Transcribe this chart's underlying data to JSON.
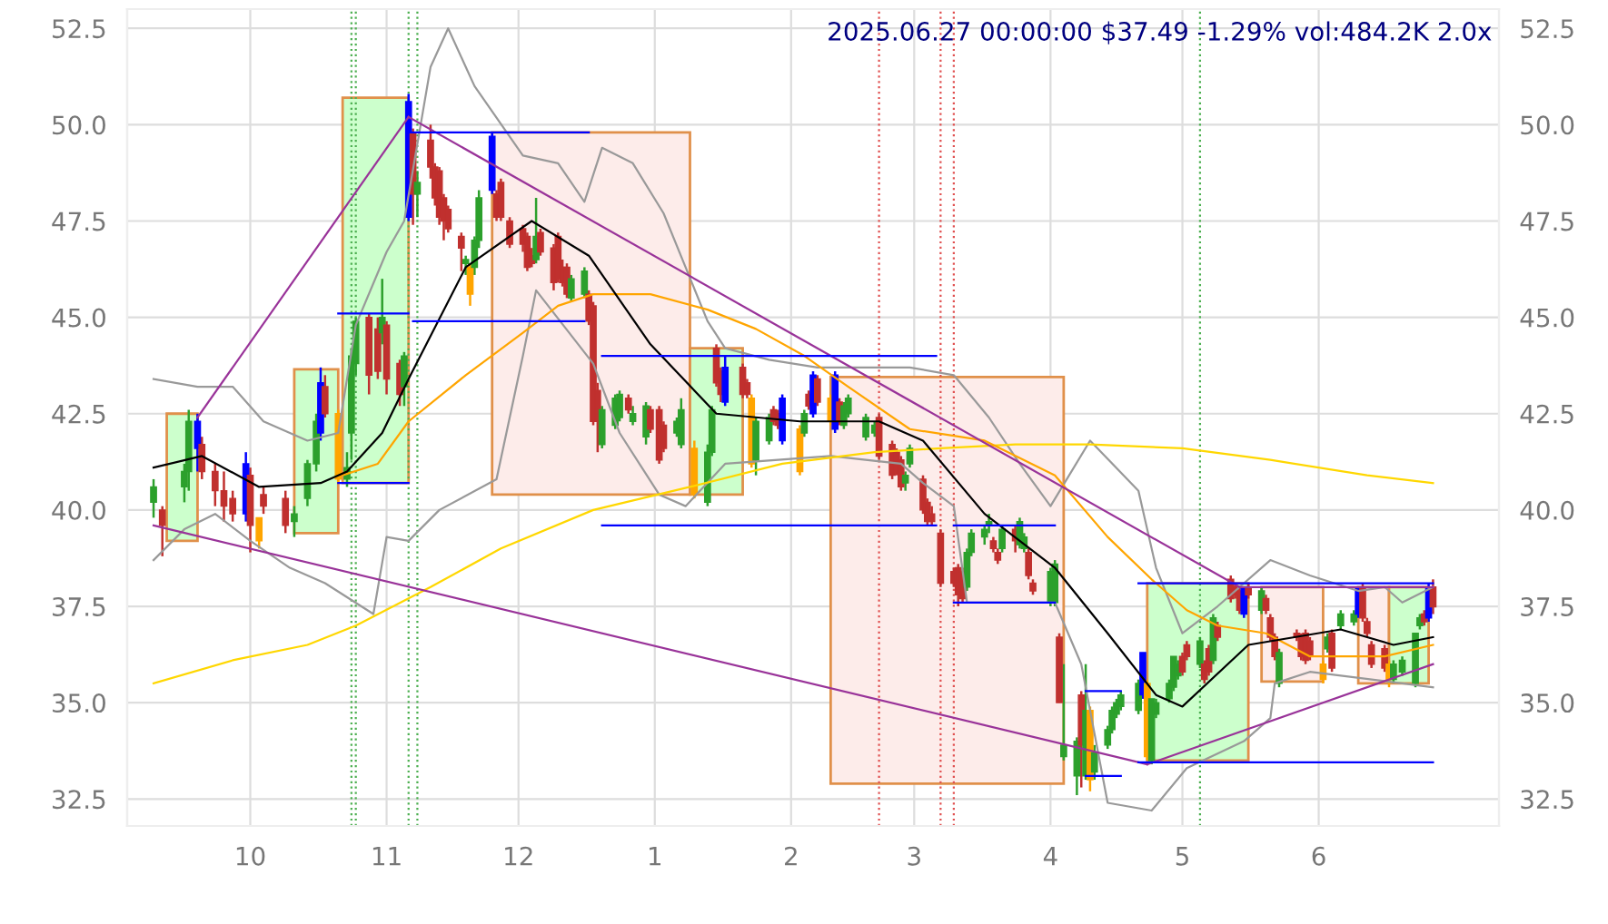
{
  "chart_data": {
    "type": "candlestick",
    "title": "2025.06.27 00:00:00 $37.49 -1.29% vol:484.2K 2.0x",
    "x": [
      "2024-09-09",
      "2024-09-11",
      "2024-09-16",
      "2024-09-17",
      "2024-09-19",
      "2024-09-20",
      "2024-09-23",
      "2024-09-25",
      "2024-09-27",
      "2024-09-30",
      "2024-10-01",
      "2024-10-03",
      "2024-10-04",
      "2024-10-09",
      "2024-10-11",
      "2024-10-14",
      "2024-10-16",
      "2024-10-17",
      "2024-10-18",
      "2024-10-21",
      "2024-10-23",
      "2024-10-24",
      "2024-10-25",
      "2024-10-28",
      "2024-10-30",
      "2024-10-31",
      "2024-11-01",
      "2024-11-04",
      "2024-11-05",
      "2024-11-06",
      "2024-11-07",
      "2024-11-08",
      "2024-11-11",
      "2024-11-12",
      "2024-11-13",
      "2024-11-14",
      "2024-11-15",
      "2024-11-18",
      "2024-11-19",
      "2024-11-20",
      "2024-11-21",
      "2024-11-22",
      "2024-11-25",
      "2024-11-26",
      "2024-11-27",
      "2024-11-29",
      "2024-12-02",
      "2024-12-03",
      "2024-12-04",
      "2024-12-05",
      "2024-12-06",
      "2024-12-09",
      "2024-12-10",
      "2024-12-11",
      "2024-12-12",
      "2024-12-13",
      "2024-12-16",
      "2024-12-17",
      "2024-12-18",
      "2024-12-19",
      "2024-12-20",
      "2024-12-23",
      "2024-12-24",
      "2024-12-26",
      "2024-12-27",
      "2024-12-30",
      "2024-12-31",
      "2025-01-02",
      "2025-01-03",
      "2025-01-06",
      "2025-01-07",
      "2025-01-10",
      "2025-01-13",
      "2025-01-14",
      "2025-01-15",
      "2025-01-16",
      "2025-01-17",
      "2025-01-21",
      "2025-01-22",
      "2025-01-23",
      "2025-01-24",
      "2025-01-27",
      "2025-01-28",
      "2025-01-29",
      "2025-01-30",
      "2025-02-03",
      "2025-02-04",
      "2025-02-05",
      "2025-02-06",
      "2025-02-07",
      "2025-02-10",
      "2025-02-11",
      "2025-02-12",
      "2025-02-13",
      "2025-02-14",
      "2025-02-18",
      "2025-02-20",
      "2025-02-21",
      "2025-02-24",
      "2025-02-25",
      "2025-02-26",
      "2025-02-27",
      "2025-02-28",
      "2025-03-03",
      "2025-03-04",
      "2025-03-05",
      "2025-03-07",
      "2025-03-10",
      "2025-03-11",
      "2025-03-12",
      "2025-03-13",
      "2025-03-14",
      "2025-03-17",
      "2025-03-18",
      "2025-03-19",
      "2025-03-20",
      "2025-03-21",
      "2025-03-24",
      "2025-03-25",
      "2025-03-26",
      "2025-03-27",
      "2025-03-28",
      "2025-04-01",
      "2025-04-02",
      "2025-04-03",
      "2025-04-04",
      "2025-04-07",
      "2025-04-08",
      "2025-04-09",
      "2025-04-10",
      "2025-04-11",
      "2025-04-14",
      "2025-04-15",
      "2025-04-16",
      "2025-04-17",
      "2025-04-21",
      "2025-04-22",
      "2025-04-23",
      "2025-04-24",
      "2025-04-25",
      "2025-04-28",
      "2025-04-29",
      "2025-04-30",
      "2025-05-01",
      "2025-05-02",
      "2025-05-05",
      "2025-05-06",
      "2025-05-07",
      "2025-05-08",
      "2025-05-09",
      "2025-05-12",
      "2025-05-13",
      "2025-05-14",
      "2025-05-15",
      "2025-05-16",
      "2025-05-19",
      "2025-05-20",
      "2025-05-21",
      "2025-05-22",
      "2025-05-23",
      "2025-05-27",
      "2025-05-28",
      "2025-05-29",
      "2025-05-30",
      "2025-06-02",
      "2025-06-03",
      "2025-06-04",
      "2025-06-06",
      "2025-06-09",
      "2025-06-10",
      "2025-06-11",
      "2025-06-12",
      "2025-06-13",
      "2025-06-16",
      "2025-06-17",
      "2025-06-18",
      "2025-06-20",
      "2025-06-23",
      "2025-06-24",
      "2025-06-25",
      "2025-06-26",
      "2025-06-27"
    ],
    "ohlc": [
      [
        40.2,
        40.8,
        39.8,
        40.6
      ],
      [
        40.0,
        40.1,
        38.8,
        39.6
      ],
      [
        40.6,
        41.2,
        40.2,
        41.0
      ],
      [
        41.0,
        42.6,
        40.5,
        42.3
      ],
      [
        42.3,
        42.5,
        41.0,
        41.6
      ],
      [
        41.7,
        41.9,
        40.8,
        41.0
      ],
      [
        41.0,
        41.2,
        40.1,
        40.5
      ],
      [
        40.5,
        41.0,
        39.7,
        40.1
      ],
      [
        40.3,
        40.5,
        39.7,
        39.9
      ],
      [
        39.9,
        41.5,
        39.7,
        41.2
      ],
      [
        40.9,
        41.1,
        38.9,
        39.6
      ],
      [
        39.8,
        39.8,
        39.0,
        39.2
      ],
      [
        40.4,
        40.6,
        39.9,
        40.1
      ],
      [
        40.3,
        40.5,
        39.4,
        39.6
      ],
      [
        39.7,
        40.1,
        39.3,
        39.9
      ],
      [
        40.3,
        41.3,
        40.1,
        41.2
      ],
      [
        41.2,
        42.5,
        41.0,
        42.3
      ],
      [
        42.0,
        43.7,
        41.8,
        43.3
      ],
      [
        43.2,
        43.5,
        42.4,
        42.5
      ],
      [
        42.5,
        42.6,
        40.7,
        40.8
      ],
      [
        40.8,
        41.5,
        40.6,
        41.1
      ],
      [
        42.0,
        44.2,
        41.3,
        44.0
      ],
      [
        43.8,
        45.0,
        43.5,
        44.9
      ],
      [
        45.0,
        45.1,
        43.0,
        43.5
      ],
      [
        44.7,
        45.0,
        43.4,
        43.6
      ],
      [
        44.6,
        46.0,
        44.3,
        45.0
      ],
      [
        44.8,
        44.9,
        43.0,
        43.4
      ],
      [
        43.8,
        43.9,
        42.7,
        43.0
      ],
      [
        43.2,
        44.1,
        42.7,
        44.0
      ],
      [
        47.6,
        50.8,
        47.5,
        50.6
      ],
      [
        49.8,
        49.9,
        47.4,
        48.2
      ],
      [
        48.2,
        48.8,
        47.6,
        48.5
      ],
      [
        49.6,
        50.0,
        48.6,
        48.9
      ],
      [
        48.9,
        49.0,
        47.9,
        48.1
      ],
      [
        48.8,
        48.9,
        47.4,
        47.6
      ],
      [
        48.1,
        48.2,
        47.0,
        47.5
      ],
      [
        47.8,
        47.9,
        47.2,
        47.3
      ],
      [
        47.1,
        47.2,
        46.2,
        46.8
      ],
      [
        46.4,
        46.6,
        46.1,
        46.5
      ],
      [
        46.3,
        46.4,
        45.3,
        45.6
      ],
      [
        46.3,
        47.1,
        46.1,
        47.0
      ],
      [
        47.0,
        48.3,
        46.8,
        48.1
      ],
      [
        49.7,
        49.8,
        48.2,
        48.3
      ],
      [
        48.2,
        48.3,
        47.5,
        47.6
      ],
      [
        48.5,
        48.6,
        47.5,
        47.6
      ],
      [
        47.5,
        47.6,
        46.8,
        46.9
      ],
      [
        47.3,
        47.4,
        46.7,
        46.9
      ],
      [
        47.1,
        47.2,
        46.2,
        46.3
      ],
      [
        46.6,
        46.8,
        46.3,
        46.4
      ],
      [
        46.5,
        48.1,
        46.4,
        47.1
      ],
      [
        47.2,
        47.3,
        46.6,
        46.7
      ],
      [
        46.8,
        46.9,
        45.7,
        45.9
      ],
      [
        47.1,
        47.2,
        45.9,
        46.0
      ],
      [
        46.3,
        46.5,
        45.8,
        45.9
      ],
      [
        46.3,
        46.4,
        45.5,
        45.6
      ],
      [
        45.5,
        46.1,
        45.4,
        46.0
      ],
      [
        45.6,
        46.3,
        45.5,
        46.2
      ],
      [
        45.6,
        45.7,
        44.8,
        44.9
      ],
      [
        45.3,
        45.4,
        42.2,
        42.3
      ],
      [
        43.1,
        43.3,
        41.5,
        42.3
      ],
      [
        41.7,
        42.7,
        41.6,
        42.6
      ],
      [
        42.2,
        43.0,
        42.1,
        42.9
      ],
      [
        42.4,
        43.1,
        42.3,
        43.0
      ],
      [
        42.9,
        43.0,
        42.5,
        42.6
      ],
      [
        42.3,
        42.7,
        42.2,
        42.5
      ],
      [
        41.9,
        42.8,
        41.7,
        42.7
      ],
      [
        42.6,
        42.7,
        42.0,
        42.1
      ],
      [
        42.6,
        42.7,
        41.2,
        41.3
      ],
      [
        42.2,
        42.3,
        41.5,
        41.6
      ],
      [
        42.0,
        42.4,
        41.9,
        42.3
      ],
      [
        41.7,
        42.9,
        41.6,
        42.6
      ],
      [
        41.6,
        41.8,
        40.3,
        40.4
      ],
      [
        40.2,
        41.7,
        40.1,
        41.5
      ],
      [
        41.5,
        42.7,
        41.4,
        42.6
      ],
      [
        44.2,
        44.3,
        43.2,
        43.3
      ],
      [
        43.6,
        43.7,
        42.8,
        43.0
      ],
      [
        43.7,
        44.0,
        42.7,
        42.8
      ],
      [
        43.7,
        43.8,
        42.9,
        43.0
      ],
      [
        43.3,
        43.4,
        42.9,
        43.0
      ],
      [
        42.9,
        43.0,
        41.1,
        41.2
      ],
      [
        41.3,
        42.4,
        40.9,
        42.3
      ],
      [
        41.8,
        42.5,
        41.7,
        42.4
      ],
      [
        42.6,
        42.7,
        42.2,
        42.3
      ],
      [
        42.5,
        42.6,
        42.1,
        42.2
      ],
      [
        41.8,
        43.0,
        41.7,
        42.9
      ],
      [
        42.1,
        42.2,
        40.9,
        41.0
      ],
      [
        42.0,
        42.6,
        41.9,
        42.5
      ],
      [
        43.0,
        43.1,
        42.6,
        42.7
      ],
      [
        42.5,
        43.6,
        42.4,
        43.5
      ],
      [
        43.4,
        43.5,
        42.7,
        42.8
      ],
      [
        42.9,
        43.0,
        42.2,
        42.3
      ],
      [
        43.5,
        43.6,
        42.0,
        42.1
      ],
      [
        42.8,
        42.9,
        42.2,
        42.3
      ],
      [
        42.2,
        42.8,
        42.1,
        42.7
      ],
      [
        42.5,
        43.0,
        42.4,
        42.9
      ],
      [
        41.9,
        42.5,
        41.8,
        42.4
      ],
      [
        42.0,
        42.3,
        41.9,
        42.2
      ],
      [
        42.4,
        42.5,
        41.3,
        41.4
      ],
      [
        41.7,
        41.8,
        40.8,
        40.9
      ],
      [
        41.5,
        41.6,
        40.9,
        41.0
      ],
      [
        41.3,
        41.4,
        40.5,
        40.6
      ],
      [
        40.7,
        41.0,
        40.5,
        40.9
      ],
      [
        41.2,
        41.7,
        41.1,
        41.6
      ],
      [
        40.8,
        40.9,
        39.9,
        40.0
      ],
      [
        40.2,
        40.3,
        39.6,
        39.7
      ],
      [
        39.9,
        40.1,
        39.6,
        39.7
      ],
      [
        39.4,
        39.5,
        38.0,
        38.1
      ],
      [
        38.4,
        38.5,
        38.0,
        38.1
      ],
      [
        38.5,
        38.6,
        37.5,
        37.8
      ],
      [
        38.4,
        38.5,
        37.6,
        37.7
      ],
      [
        38.0,
        39.0,
        37.9,
        38.9
      ],
      [
        38.9,
        39.5,
        38.8,
        39.4
      ],
      [
        39.3,
        39.6,
        39.1,
        39.5
      ],
      [
        39.6,
        39.9,
        39.4,
        39.7
      ],
      [
        39.2,
        39.3,
        38.9,
        39.0
      ],
      [
        38.9,
        39.0,
        38.6,
        38.7
      ],
      [
        39.0,
        39.6,
        38.9,
        39.5
      ],
      [
        39.5,
        39.6,
        38.9,
        39.2
      ],
      [
        39.1,
        39.8,
        39.0,
        39.7
      ],
      [
        39.0,
        39.4,
        38.9,
        39.3
      ],
      [
        38.9,
        39.0,
        38.2,
        38.3
      ],
      [
        38.1,
        38.2,
        37.8,
        37.9
      ],
      [
        37.6,
        38.5,
        37.5,
        38.4
      ],
      [
        37.6,
        38.7,
        37.5,
        38.6
      ],
      [
        36.7,
        36.8,
        35.0,
        35.0
      ],
      [
        33.6,
        36.0,
        33.5,
        33.9
      ],
      [
        33.1,
        34.1,
        32.6,
        34.0
      ],
      [
        35.2,
        35.3,
        32.8,
        33.9
      ],
      [
        33.1,
        36.0,
        33.0,
        34.8
      ],
      [
        34.8,
        34.9,
        32.7,
        33.0
      ],
      [
        33.2,
        33.9,
        33.0,
        33.7
      ],
      [
        33.9,
        34.4,
        33.8,
        34.3
      ],
      [
        34.3,
        34.9,
        34.2,
        34.8
      ],
      [
        34.7,
        35.1,
        34.6,
        35.0
      ],
      [
        34.9,
        35.3,
        34.8,
        35.2
      ],
      [
        34.8,
        35.6,
        34.7,
        35.5
      ],
      [
        35.2,
        36.3,
        35.1,
        36.3
      ],
      [
        35.5,
        35.6,
        33.5,
        33.6
      ],
      [
        33.5,
        35.1,
        33.4,
        35.1
      ],
      [
        34.7,
        35.1,
        34.6,
        35.0
      ],
      [
        35.1,
        35.6,
        35.0,
        35.5
      ],
      [
        35.4,
        36.2,
        35.3,
        36.2
      ],
      [
        35.7,
        36.1,
        35.6,
        36.0
      ],
      [
        36.2,
        36.3,
        35.7,
        35.8
      ],
      [
        36.5,
        36.6,
        36.1,
        36.2
      ],
      [
        36.0,
        36.7,
        35.9,
        36.6
      ],
      [
        36.0,
        36.1,
        35.5,
        35.6
      ],
      [
        36.4,
        36.5,
        35.7,
        35.8
      ],
      [
        36.1,
        37.3,
        36.0,
        37.2
      ],
      [
        37.0,
        37.1,
        36.6,
        36.7
      ],
      [
        38.2,
        38.3,
        37.6,
        37.7
      ],
      [
        38.0,
        38.1,
        37.7,
        37.8
      ],
      [
        37.9,
        38.0,
        37.3,
        37.4
      ],
      [
        37.3,
        38.0,
        37.2,
        38.0
      ],
      [
        38.0,
        38.1,
        37.7,
        37.8
      ],
      [
        37.4,
        38.0,
        37.3,
        37.9
      ],
      [
        37.7,
        37.8,
        37.3,
        37.4
      ],
      [
        37.2,
        37.3,
        36.6,
        36.7
      ],
      [
        36.7,
        36.8,
        36.1,
        36.2
      ],
      [
        35.5,
        36.4,
        35.4,
        36.3
      ],
      [
        36.8,
        36.9,
        36.6,
        36.7
      ],
      [
        36.7,
        36.8,
        36.1,
        36.2
      ],
      [
        36.8,
        36.9,
        36.0,
        36.1
      ],
      [
        36.6,
        36.7,
        36.1,
        36.2
      ],
      [
        36.0,
        36.1,
        35.5,
        35.6
      ],
      [
        36.4,
        36.8,
        36.3,
        36.7
      ],
      [
        36.8,
        36.9,
        35.8,
        35.9
      ],
      [
        37.0,
        37.4,
        36.9,
        37.3
      ],
      [
        37.1,
        37.4,
        37.0,
        37.3
      ],
      [
        37.3,
        38.0,
        37.2,
        38.0
      ],
      [
        38.0,
        38.1,
        37.1,
        37.2
      ],
      [
        37.1,
        37.2,
        36.7,
        36.8
      ],
      [
        36.5,
        36.6,
        35.9,
        36.0
      ],
      [
        36.4,
        36.5,
        35.8,
        35.9
      ],
      [
        36.0,
        36.1,
        35.4,
        35.6
      ],
      [
        35.6,
        36.1,
        35.5,
        36.0
      ],
      [
        35.8,
        36.2,
        35.7,
        36.1
      ],
      [
        35.5,
        36.8,
        35.4,
        36.8
      ],
      [
        37.0,
        37.3,
        36.9,
        37.2
      ],
      [
        37.3,
        37.4,
        37.0,
        37.1
      ],
      [
        37.2,
        38.1,
        37.1,
        38.0
      ],
      [
        38.0,
        38.2,
        37.3,
        37.49
      ]
    ],
    "colors": [
      "#2ca02c",
      "#c0302e",
      "#2ca02c",
      "#2ca02c",
      "#0000ff",
      "#c0302e",
      "#c0302e",
      "#c0302e",
      "#c0302e",
      "#0000ff",
      "#c0302e",
      "#ffa500",
      "#c0302e",
      "#c0302e",
      "#2ca02c",
      "#2ca02c",
      "#2ca02c",
      "#0000ff",
      "#c0302e",
      "#ffa500",
      "#2ca02c",
      "#2ca02c",
      "#2ca02c",
      "#c0302e",
      "#c0302e",
      "#2ca02c",
      "#c0302e",
      "#c0302e",
      "#2ca02c",
      "#0000ff",
      "#c0302e",
      "#2ca02c",
      "#c0302e",
      "#c0302e",
      "#c0302e",
      "#c0302e",
      "#c0302e",
      "#c0302e",
      "#2ca02c",
      "#ffa500",
      "#2ca02c",
      "#2ca02c",
      "#0000ff",
      "#c0302e",
      "#c0302e",
      "#c0302e",
      "#c0302e",
      "#c0302e",
      "#c0302e",
      "#2ca02c",
      "#c0302e",
      "#c0302e",
      "#c0302e",
      "#c0302e",
      "#c0302e",
      "#2ca02c",
      "#2ca02c",
      "#c0302e",
      "#c0302e",
      "#c0302e",
      "#2ca02c",
      "#2ca02c",
      "#2ca02c",
      "#c0302e",
      "#2ca02c",
      "#2ca02c",
      "#c0302e",
      "#c0302e",
      "#c0302e",
      "#2ca02c",
      "#2ca02c",
      "#ffa500",
      "#2ca02c",
      "#2ca02c",
      "#c0302e",
      "#c0302e",
      "#0000ff",
      "#c0302e",
      "#c0302e",
      "#ffa500",
      "#2ca02c",
      "#2ca02c",
      "#c0302e",
      "#c0302e",
      "#0000ff",
      "#ffa500",
      "#2ca02c",
      "#c0302e",
      "#0000ff",
      "#c0302e",
      "#ffa500",
      "#0000ff",
      "#c0302e",
      "#2ca02c",
      "#2ca02c",
      "#2ca02c",
      "#2ca02c",
      "#c0302e",
      "#c0302e",
      "#c0302e",
      "#c0302e",
      "#2ca02c",
      "#2ca02c",
      "#c0302e",
      "#c0302e",
      "#c0302e",
      "#c0302e",
      "#c0302e",
      "#c0302e",
      "#c0302e",
      "#2ca02c",
      "#2ca02c",
      "#2ca02c",
      "#2ca02c",
      "#c0302e",
      "#c0302e",
      "#2ca02c",
      "#c0302e",
      "#2ca02c",
      "#2ca02c",
      "#c0302e",
      "#c0302e",
      "#2ca02c",
      "#2ca02c",
      "#c0302e",
      "#2ca02c",
      "#2ca02c",
      "#c0302e",
      "#2ca02c",
      "#ffa500",
      "#2ca02c",
      "#2ca02c",
      "#2ca02c",
      "#2ca02c",
      "#2ca02c",
      "#2ca02c",
      "#0000ff",
      "#ffa500",
      "#2ca02c",
      "#2ca02c",
      "#2ca02c",
      "#2ca02c",
      "#2ca02c",
      "#c0302e",
      "#c0302e",
      "#2ca02c",
      "#c0302e",
      "#c0302e",
      "#2ca02c",
      "#c0302e",
      "#c0302e",
      "#c0302e",
      "#c0302e",
      "#0000ff",
      "#c0302e",
      "#2ca02c",
      "#c0302e",
      "#c0302e",
      "#c0302e",
      "#2ca02c",
      "#c0302e",
      "#c0302e",
      "#c0302e",
      "#c0302e",
      "#ffa500",
      "#2ca02c",
      "#c0302e",
      "#2ca02c",
      "#2ca02c",
      "#0000ff",
      "#c0302e",
      "#c0302e",
      "#c0302e",
      "#c0302e",
      "#ffa500",
      "#2ca02c",
      "#2ca02c",
      "#2ca02c",
      "#2ca02c",
      "#c0302e",
      "#0000ff",
      "#c0302e"
    ],
    "series": [
      {
        "type": "area",
        "color": "#ccffcc",
        "x": [
          "2024-09-12",
          "2024-09-12",
          "2024-09-19",
          "2024-09-19"
        ],
        "values": [
          39.2,
          42.5,
          42.5,
          39.2
        ]
      },
      {
        "type": "area",
        "color": "#ccffcc",
        "x": [
          "2024-10-11",
          "2024-10-11",
          "2024-10-21",
          "2024-10-21"
        ],
        "values": [
          39.4,
          43.65,
          43.65,
          39.4
        ]
      },
      {
        "type": "area",
        "color": "#ccffcc",
        "x": [
          "2024-10-22",
          "2024-10-22",
          "2024-11-06",
          "2024-11-06"
        ],
        "values": [
          40.7,
          50.7,
          50.7,
          40.7
        ]
      },
      {
        "type": "area",
        "color": "#fdecea",
        "x": [
          "2024-11-25",
          "2024-11-25",
          "2025-01-09",
          "2025-01-09"
        ],
        "values": [
          40.4,
          49.8,
          49.8,
          40.4
        ]
      },
      {
        "type": "area",
        "color": "#ccffcc",
        "x": [
          "2025-01-09",
          "2025-01-09",
          "2025-01-21",
          "2025-01-21"
        ],
        "values": [
          40.4,
          44.2,
          44.2,
          40.4
        ]
      },
      {
        "type": "area",
        "color": "#fdecea",
        "x": [
          "2025-02-10",
          "2025-02-10",
          "2025-04-04",
          "2025-04-04"
        ],
        "values": [
          32.9,
          43.45,
          43.45,
          32.9
        ]
      },
      {
        "type": "area",
        "color": "#ccffcc",
        "x": [
          "2025-04-23",
          "2025-04-23",
          "2025-05-16",
          "2025-05-16"
        ],
        "values": [
          33.5,
          38.1,
          38.1,
          33.5
        ]
      },
      {
        "type": "area",
        "color": "#fdecea",
        "x": [
          "2025-05-19",
          "2025-05-19",
          "2025-06-02",
          "2025-06-02"
        ],
        "values": [
          35.55,
          38.0,
          38.0,
          35.55
        ]
      },
      {
        "type": "area",
        "color": "#fdecea",
        "x": [
          "2025-06-10",
          "2025-06-10",
          "2025-06-17",
          "2025-06-17"
        ],
        "values": [
          35.5,
          38.0,
          38.0,
          35.5
        ]
      },
      {
        "type": "area",
        "color": "#ccffcc",
        "x": [
          "2025-06-17",
          "2025-06-17",
          "2025-06-26",
          "2025-06-26"
        ],
        "values": [
          35.5,
          38.0,
          38.0,
          35.5
        ]
      },
      {
        "type": "line",
        "color": "#999999",
        "x": [
          "2024-09-09",
          "2024-09-19",
          "2024-09-27",
          "2024-10-04",
          "2024-10-14",
          "2024-10-21",
          "2024-10-25",
          "2024-11-01",
          "2024-11-05",
          "2024-11-11",
          "2024-11-15",
          "2024-11-21",
          "2024-12-02",
          "2024-12-10",
          "2024-12-16",
          "2024-12-20",
          "2024-12-27",
          "2025-01-03",
          "2025-01-13",
          "2025-01-17",
          "2025-01-27",
          "2025-02-07",
          "2025-02-28",
          "2025-03-10",
          "2025-03-18",
          "2025-03-25",
          "2025-04-01",
          "2025-04-10",
          "2025-04-21",
          "2025-04-25",
          "2025-05-01",
          "2025-05-09",
          "2025-05-21",
          "2025-05-30",
          "2025-06-10",
          "2025-06-16",
          "2025-06-20",
          "2025-06-27"
        ],
        "values": [
          43.4,
          43.2,
          43.2,
          42.3,
          41.8,
          42.0,
          44.8,
          46.7,
          47.5,
          51.5,
          52.5,
          51.0,
          49.2,
          49.0,
          48.0,
          49.4,
          49.0,
          47.7,
          44.9,
          44.2,
          43.9,
          43.7,
          43.7,
          43.5,
          42.4,
          41.2,
          40.1,
          41.8,
          40.5,
          38.5,
          36.8,
          37.5,
          38.7,
          38.3,
          37.9,
          38.0,
          37.6,
          38.0
        ]
      },
      {
        "type": "line",
        "color": "#999999",
        "x": [
          "2024-09-09",
          "2024-09-16",
          "2024-09-23",
          "2024-10-01",
          "2024-10-10",
          "2024-10-18",
          "2024-10-29",
          "2024-11-01",
          "2024-11-06",
          "2024-11-13",
          "2024-11-26",
          "2024-12-02",
          "2024-12-05",
          "2024-12-18",
          "2024-12-24",
          "2025-01-02",
          "2025-01-08",
          "2025-01-17",
          "2025-02-10",
          "2025-02-26",
          "2025-03-03",
          "2025-03-10",
          "2025-03-13",
          "2025-04-02",
          "2025-04-08",
          "2025-04-14",
          "2025-04-24",
          "2025-05-02",
          "2025-05-15",
          "2025-05-21",
          "2025-05-22",
          "2025-05-30",
          "2025-06-20",
          "2025-06-27"
        ],
        "values": [
          38.7,
          39.5,
          39.9,
          39.2,
          38.5,
          38.1,
          37.3,
          39.3,
          39.2,
          40.0,
          40.8,
          44.0,
          45.7,
          43.8,
          42.0,
          40.4,
          40.1,
          41.2,
          41.4,
          41.2,
          40.7,
          40.1,
          37.6,
          37.6,
          36.0,
          32.4,
          32.2,
          33.3,
          34.0,
          34.6,
          35.5,
          35.8,
          35.5,
          35.4
        ]
      },
      {
        "type": "line",
        "color": "#ffd700",
        "x": [
          "2024-09-09",
          "2024-09-27",
          "2024-10-14",
          "2024-10-25",
          "2024-11-11",
          "2024-11-27",
          "2024-12-18",
          "2025-01-09",
          "2025-01-30",
          "2025-02-20",
          "2025-03-07",
          "2025-03-24",
          "2025-04-10",
          "2025-05-01",
          "2025-05-21",
          "2025-06-12",
          "2025-06-27"
        ],
        "values": [
          35.5,
          36.1,
          36.5,
          37.0,
          38.0,
          39.0,
          40.0,
          40.6,
          41.2,
          41.5,
          41.6,
          41.7,
          41.7,
          41.6,
          41.3,
          40.9,
          40.7
        ]
      },
      {
        "type": "line",
        "color": "#ffa500",
        "x": [
          "2024-10-22",
          "2024-10-30",
          "2024-11-06",
          "2024-11-19",
          "2024-12-02",
          "2024-12-10",
          "2024-12-18",
          "2024-12-31",
          "2025-01-13",
          "2025-01-24",
          "2025-02-04",
          "2025-02-14",
          "2025-02-28",
          "2025-03-17",
          "2025-04-02",
          "2025-04-14",
          "2025-04-24",
          "2025-05-02",
          "2025-05-09",
          "2025-05-20",
          "2025-05-30",
          "2025-06-16",
          "2025-06-27"
        ],
        "values": [
          40.9,
          41.2,
          42.3,
          43.5,
          44.6,
          45.3,
          45.6,
          45.6,
          45.2,
          44.7,
          44.0,
          43.2,
          42.1,
          41.8,
          40.9,
          39.3,
          38.2,
          37.4,
          37.0,
          36.8,
          36.2,
          36.2,
          36.5
        ]
      },
      {
        "type": "line",
        "color": "#000000",
        "x": [
          "2024-09-09",
          "2024-09-20",
          "2024-10-03",
          "2024-10-17",
          "2024-10-23",
          "2024-10-31",
          "2024-11-06",
          "2024-11-19",
          "2024-12-04",
          "2024-12-17",
          "2024-12-31",
          "2025-01-15",
          "2025-02-03",
          "2025-02-21",
          "2025-03-03",
          "2025-03-17",
          "2025-04-02",
          "2025-04-14",
          "2025-04-25",
          "2025-05-01",
          "2025-05-16",
          "2025-06-06",
          "2025-06-18",
          "2025-06-27"
        ],
        "values": [
          41.1,
          41.4,
          40.6,
          40.7,
          41.0,
          42.0,
          43.4,
          46.3,
          47.5,
          46.6,
          44.3,
          42.5,
          42.3,
          42.3,
          41.8,
          39.9,
          38.5,
          36.8,
          35.2,
          34.9,
          36.5,
          36.9,
          36.5,
          36.7
        ]
      },
      {
        "type": "line",
        "color": "#993399",
        "x": [
          "2024-09-19",
          "2024-11-06"
        ],
        "values": [
          42.4,
          50.2
        ]
      },
      {
        "type": "line",
        "color": "#993399",
        "x": [
          "2024-11-06",
          "2025-05-14"
        ],
        "values": [
          50.2,
          38.0
        ]
      },
      {
        "type": "line",
        "color": "#993399",
        "x": [
          "2024-09-09",
          "2025-04-23"
        ],
        "values": [
          39.6,
          33.4
        ]
      },
      {
        "type": "line",
        "color": "#993399",
        "x": [
          "2025-04-23",
          "2025-06-27"
        ],
        "values": [
          33.4,
          36.0
        ]
      },
      {
        "type": "line",
        "color": "#993399",
        "x": [
          "2025-05-14",
          "2025-06-27"
        ],
        "values": [
          38.0,
          38.0
        ]
      },
      {
        "type": "line",
        "color": "#0000ff",
        "x": [
          "2024-11-06",
          "2024-12-17"
        ],
        "values": [
          49.8,
          49.8
        ]
      },
      {
        "type": "line",
        "color": "#0000ff",
        "x": [
          "2024-11-07",
          "2024-12-16"
        ],
        "values": [
          44.9,
          44.9
        ]
      },
      {
        "type": "line",
        "color": "#0000ff",
        "x": [
          "2024-10-21",
          "2024-11-06"
        ],
        "values": [
          45.1,
          45.1
        ]
      },
      {
        "type": "line",
        "color": "#0000ff",
        "x": [
          "2024-10-21",
          "2024-11-06"
        ],
        "values": [
          40.7,
          40.7
        ]
      },
      {
        "type": "line",
        "color": "#0000ff",
        "x": [
          "2024-12-20",
          "2025-03-06"
        ],
        "values": [
          44.0,
          44.0
        ]
      },
      {
        "type": "line",
        "color": "#0000ff",
        "x": [
          "2024-12-20",
          "2025-03-06"
        ],
        "values": [
          39.6,
          39.6
        ]
      },
      {
        "type": "line",
        "color": "#0000ff",
        "x": [
          "2025-03-10",
          "2025-04-02"
        ],
        "values": [
          39.6,
          39.6
        ]
      },
      {
        "type": "line",
        "color": "#0000ff",
        "x": [
          "2025-03-10",
          "2025-04-02"
        ],
        "values": [
          37.6,
          37.6
        ]
      },
      {
        "type": "line",
        "color": "#0000ff",
        "x": [
          "2025-04-09",
          "2025-04-17"
        ],
        "values": [
          35.3,
          35.3
        ]
      },
      {
        "type": "line",
        "color": "#0000ff",
        "x": [
          "2025-04-09",
          "2025-04-17"
        ],
        "values": [
          33.1,
          33.1
        ]
      },
      {
        "type": "line",
        "color": "#0000ff",
        "x": [
          "2025-04-21",
          "2025-06-27"
        ],
        "values": [
          38.1,
          38.1
        ]
      },
      {
        "type": "line",
        "color": "#0000ff",
        "x": [
          "2025-04-21",
          "2025-06-27"
        ],
        "values": [
          33.45,
          33.45
        ]
      }
    ],
    "ref_lines": [
      {
        "axis": "x",
        "value": "2024-10-24",
        "color": "#4caf50",
        "line_style": "dotted"
      },
      {
        "axis": "x",
        "value": "2024-10-25",
        "color": "#4caf50",
        "line_style": "dotted"
      },
      {
        "axis": "x",
        "value": "2024-11-06",
        "color": "#4caf50",
        "line_style": "dotted"
      },
      {
        "axis": "x",
        "value": "2024-11-08",
        "color": "#4caf50",
        "line_style": "dotted"
      },
      {
        "axis": "x",
        "value": "2025-02-21",
        "color": "#e05050",
        "line_style": "dotted"
      },
      {
        "axis": "x",
        "value": "2025-03-07",
        "color": "#e05050",
        "line_style": "dotted"
      },
      {
        "axis": "x",
        "value": "2025-03-10",
        "color": "#e05050",
        "line_style": "dotted"
      },
      {
        "axis": "x",
        "value": "2025-05-05",
        "color": "#4caf50",
        "line_style": "dotted"
      }
    ],
    "xlim": [
      "2024-09-03",
      "2025-07-12"
    ],
    "xticks": [
      {
        "value": "2024-10-01",
        "label": "10"
      },
      {
        "value": "2024-11-01",
        "label": "11"
      },
      {
        "value": "2024-12-01",
        "label": "12"
      },
      {
        "value": "2025-01-01",
        "label": "1"
      },
      {
        "value": "2025-02-01",
        "label": "2"
      },
      {
        "value": "2025-03-01",
        "label": "3"
      },
      {
        "value": "2025-04-01",
        "label": "4"
      },
      {
        "value": "2025-05-01",
        "label": "5"
      },
      {
        "value": "2025-06-01",
        "label": "6"
      }
    ],
    "ylim": [
      31.8,
      53.0
    ],
    "yticks": [
      32.5,
      {
        "value": 35,
        "label": "35.0"
      },
      37.5,
      {
        "value": 40,
        "label": "40.0"
      },
      42.5,
      {
        "value": 45,
        "label": "45.0"
      },
      47.5,
      {
        "value": 50,
        "label": "50.0"
      },
      52.5
    ],
    "y2lim": [
      31.8,
      53.0
    ],
    "y2ticks": [
      32.5,
      {
        "value": 35,
        "label": "35.0"
      },
      37.5,
      {
        "value": 40,
        "label": "40.0"
      },
      42.5,
      {
        "value": 45,
        "label": "45.0"
      },
      47.5,
      {
        "value": 50,
        "label": "50.0"
      },
      52.5
    ],
    "grid": true
  }
}
